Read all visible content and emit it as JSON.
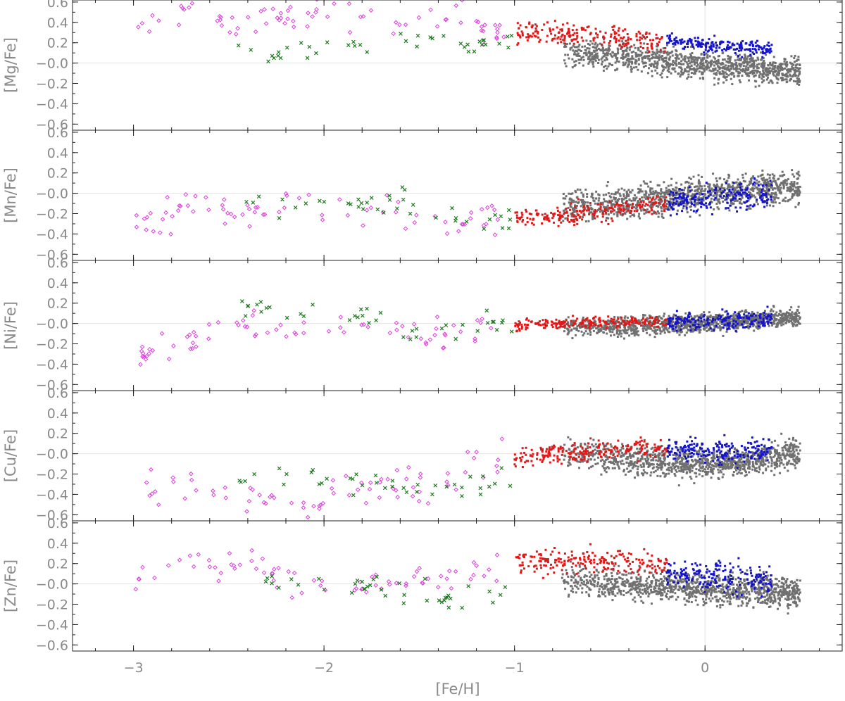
{
  "chart_data": {
    "type": "scatter",
    "xlabel": "[Fe/H]",
    "xlim": [
      -3.32,
      0.72
    ],
    "x_ticks": [
      -3,
      -2,
      -1,
      0
    ],
    "x_tick_labels": [
      "−3",
      "−2",
      "−1",
      "0"
    ],
    "y_ticks": [
      -0.6,
      -0.4,
      -0.2,
      0.0,
      0.2,
      0.4,
      0.6
    ],
    "y_tick_labels": [
      "−0.6",
      "−0.4",
      "−0.2",
      "−0.0",
      "0.2",
      "0.4",
      "0.6"
    ],
    "ylim": [
      -0.66,
      0.62
    ],
    "reference_lines": {
      "x": 0,
      "y": 0
    },
    "series_colors": {
      "open_diamond": "#e040e0",
      "cross": "#1e7a1e",
      "red_square": "#e01818",
      "blue_square": "#1414c8",
      "gray_square": "#707070"
    },
    "panels": [
      {
        "ylabel": "[Mg/Fe]",
        "trends": {
          "diamond": [
            [
              -3.0,
              0.35
            ],
            [
              -2.7,
              0.55
            ],
            [
              -2.5,
              0.35
            ],
            [
              -2.3,
              0.45
            ],
            [
              -2.0,
              0.55
            ],
            [
              -1.8,
              0.4
            ],
            [
              -1.5,
              0.45
            ],
            [
              -1.3,
              0.5
            ],
            [
              -1.1,
              0.3
            ]
          ],
          "cross": [
            [
              -2.4,
              0.15
            ],
            [
              -2.3,
              0.1
            ],
            [
              -2.0,
              0.15
            ],
            [
              -1.8,
              0.18
            ],
            [
              -1.6,
              0.2
            ],
            [
              -1.4,
              0.2
            ],
            [
              -1.2,
              0.2
            ],
            [
              -1.0,
              0.25
            ]
          ],
          "red": [
            [
              -1.0,
              0.3
            ],
            [
              -0.8,
              0.3
            ],
            [
              -0.6,
              0.28
            ],
            [
              -0.4,
              0.25
            ],
            [
              -0.2,
              0.2
            ]
          ],
          "blue": [
            [
              -0.2,
              0.22
            ],
            [
              0.0,
              0.18
            ],
            [
              0.2,
              0.15
            ],
            [
              0.35,
              0.13
            ]
          ],
          "gray": [
            [
              -0.75,
              0.12
            ],
            [
              -0.5,
              0.08
            ],
            [
              -0.25,
              0.03
            ],
            [
              0.0,
              -0.02
            ],
            [
              0.2,
              -0.05
            ],
            [
              0.45,
              -0.07
            ]
          ]
        },
        "spread": {
          "diamond": 0.08,
          "cross": 0.05,
          "red": 0.05,
          "blue": 0.035,
          "gray": 0.065
        }
      },
      {
        "ylabel": "[Mn/Fe]",
        "trends": {
          "diamond": [
            [
              -3.0,
              -0.35
            ],
            [
              -2.7,
              -0.1
            ],
            [
              -2.4,
              -0.2
            ],
            [
              -2.0,
              -0.15
            ],
            [
              -1.6,
              -0.2
            ],
            [
              -1.3,
              -0.25
            ],
            [
              -1.1,
              -0.25
            ]
          ],
          "cross": [
            [
              -1.9,
              -0.1
            ],
            [
              -1.6,
              -0.1
            ],
            [
              -1.3,
              -0.2
            ],
            [
              -1.0,
              -0.2
            ]
          ],
          "red": [
            [
              -1.0,
              -0.25
            ],
            [
              -0.8,
              -0.22
            ],
            [
              -0.6,
              -0.18
            ],
            [
              -0.4,
              -0.15
            ],
            [
              -0.2,
              -0.1
            ]
          ],
          "blue": [
            [
              -0.2,
              -0.08
            ],
            [
              0.0,
              -0.05
            ],
            [
              0.2,
              -0.02
            ],
            [
              0.35,
              0.0
            ]
          ],
          "gray": [
            [
              -0.75,
              -0.15
            ],
            [
              -0.5,
              -0.1
            ],
            [
              -0.25,
              -0.05
            ],
            [
              0.0,
              0.0
            ],
            [
              0.2,
              0.02
            ],
            [
              0.45,
              0.05
            ]
          ]
        },
        "spread": {
          "diamond": 0.09,
          "cross": 0.08,
          "red": 0.05,
          "blue": 0.07,
          "gray": 0.08
        }
      },
      {
        "ylabel": "[Ni/Fe]",
        "trends": {
          "diamond": [
            [
              -3.0,
              -0.35
            ],
            [
              -2.7,
              -0.15
            ],
            [
              -2.4,
              -0.05
            ],
            [
              -2.0,
              -0.1
            ],
            [
              -1.6,
              -0.05
            ],
            [
              -1.3,
              -0.1
            ],
            [
              -1.1,
              -0.02
            ]
          ],
          "cross": [
            [
              -2.4,
              0.15
            ],
            [
              -1.8,
              0.1
            ],
            [
              -1.6,
              -0.05
            ],
            [
              -1.3,
              -0.05
            ],
            [
              -1.0,
              0.0
            ]
          ],
          "red": [
            [
              -1.0,
              -0.02
            ],
            [
              -0.8,
              0.0
            ],
            [
              -0.6,
              0.01
            ],
            [
              -0.4,
              0.01
            ],
            [
              -0.2,
              0.01
            ]
          ],
          "blue": [
            [
              -0.2,
              0.01
            ],
            [
              0.0,
              0.02
            ],
            [
              0.2,
              0.04
            ],
            [
              0.35,
              0.05
            ]
          ],
          "gray": [
            [
              -0.75,
              -0.02
            ],
            [
              -0.5,
              -0.03
            ],
            [
              -0.25,
              -0.02
            ],
            [
              0.0,
              0.0
            ],
            [
              0.2,
              0.03
            ],
            [
              0.45,
              0.06
            ]
          ]
        },
        "spread": {
          "diamond": 0.07,
          "cross": 0.06,
          "red": 0.025,
          "blue": 0.04,
          "gray": 0.045
        }
      },
      {
        "ylabel": "[Cu/Fe]",
        "trends": {
          "diamond": [
            [
              -2.5,
              -0.35
            ],
            [
              -2.1,
              -0.6
            ],
            [
              -1.9,
              -0.3
            ],
            [
              -1.6,
              -0.3
            ],
            [
              -1.3,
              -0.2
            ],
            [
              -1.1,
              -0.05
            ]
          ],
          "cross": [
            [
              -1.9,
              -0.25
            ],
            [
              -1.6,
              -0.32
            ],
            [
              -1.4,
              -0.33
            ],
            [
              -1.2,
              -0.3
            ],
            [
              -1.05,
              -0.2
            ]
          ],
          "red": [
            [
              -1.0,
              -0.05
            ],
            [
              -0.8,
              0.0
            ],
            [
              -0.6,
              0.03
            ],
            [
              -0.4,
              0.05
            ],
            [
              -0.2,
              0.05
            ]
          ],
          "blue": [
            [
              -0.2,
              0.05
            ],
            [
              0.0,
              0.03
            ],
            [
              0.2,
              0.03
            ],
            [
              0.35,
              0.05
            ]
          ],
          "gray": [
            [
              -0.75,
              0.0
            ],
            [
              -0.5,
              -0.03
            ],
            [
              -0.25,
              -0.08
            ],
            [
              0.0,
              -0.1
            ],
            [
              0.2,
              -0.07
            ],
            [
              0.45,
              0.0
            ]
          ]
        },
        "spread": {
          "diamond": 0.1,
          "cross": 0.06,
          "red": 0.05,
          "blue": 0.06,
          "gray": 0.07
        }
      },
      {
        "ylabel": "[Zn/Fe]",
        "trends": {
          "diamond": [
            [
              -3.0,
              0.1
            ],
            [
              -2.7,
              0.18
            ],
            [
              -2.4,
              0.2
            ],
            [
              -2.2,
              0.05
            ],
            [
              -2.0,
              0.0
            ],
            [
              -1.7,
              -0.02
            ],
            [
              -1.5,
              0.05
            ],
            [
              -1.3,
              0.05
            ],
            [
              -1.1,
              0.1
            ]
          ],
          "cross": [
            [
              -1.9,
              -0.02
            ],
            [
              -1.6,
              -0.08
            ],
            [
              -1.4,
              -0.1
            ],
            [
              -1.2,
              -0.1
            ],
            [
              -1.05,
              -0.05
            ]
          ],
          "red": [
            [
              -1.0,
              0.2
            ],
            [
              -0.8,
              0.22
            ],
            [
              -0.6,
              0.22
            ],
            [
              -0.4,
              0.2
            ],
            [
              -0.2,
              0.18
            ]
          ],
          "blue": [
            [
              -0.2,
              0.12
            ],
            [
              0.0,
              0.08
            ],
            [
              0.2,
              0.05
            ],
            [
              0.35,
              0.05
            ]
          ],
          "gray": [
            [
              -0.75,
              0.05
            ],
            [
              -0.5,
              0.0
            ],
            [
              -0.25,
              -0.02
            ],
            [
              0.0,
              -0.05
            ],
            [
              0.2,
              -0.06
            ],
            [
              0.45,
              -0.08
            ]
          ]
        },
        "spread": {
          "diamond": 0.08,
          "cross": 0.07,
          "red": 0.06,
          "blue": 0.07,
          "gray": 0.07
        }
      }
    ],
    "samples": {
      "diamond": {
        "n": 75,
        "x": [
          -3.0,
          -1.05
        ]
      },
      "cross": {
        "n": 40,
        "x": [
          -2.45,
          -1.0
        ]
      },
      "red": {
        "n": 210,
        "x": [
          -1.0,
          -0.2
        ]
      },
      "blue": {
        "n": 200,
        "x": [
          -0.2,
          0.35
        ]
      },
      "gray": {
        "n": 1100,
        "x": [
          -0.75,
          0.5
        ]
      }
    }
  }
}
